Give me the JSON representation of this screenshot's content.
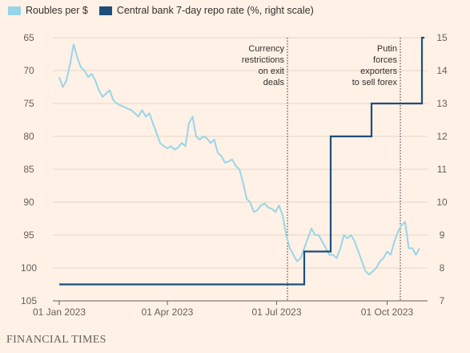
{
  "legend": {
    "items": [
      {
        "label": "Roubles per $",
        "color": "#99d5e8"
      },
      {
        "label": "Central bank 7-day repo rate (%, right scale)",
        "color": "#1f4e7a"
      }
    ]
  },
  "footer": {
    "source": "FINANCIAL TIMES"
  },
  "chart_data": {
    "type": "line",
    "x_ticks": [
      "01 Jan 2023",
      "01 Apr 2023",
      "01 Jul 2023",
      "01 Oct 2023"
    ],
    "x_range": [
      "2023-01-01",
      "2023-11-01"
    ],
    "left_axis": {
      "range": [
        65,
        105
      ],
      "inverted": true,
      "ticks": [
        65,
        70,
        75,
        80,
        85,
        90,
        95,
        100,
        105
      ]
    },
    "right_axis": {
      "range": [
        7,
        15
      ],
      "ticks": [
        7,
        8,
        9,
        10,
        11,
        12,
        13,
        14,
        15
      ]
    },
    "grid": "horizontal",
    "legend_position": "top-left",
    "annotations": [
      {
        "lines": [
          "Currency",
          "restrictions",
          "on exit",
          "deals"
        ],
        "x": "2023-07-10"
      },
      {
        "lines": [
          "Putin",
          "forces",
          "exporters",
          "to sell forex"
        ],
        "x": "2023-10-12"
      }
    ],
    "series": [
      {
        "name": "Roubles per $",
        "axis": "left",
        "color": "#99d5e8",
        "x": [
          "2023-01-01",
          "2023-01-04",
          "2023-01-07",
          "2023-01-10",
          "2023-01-13",
          "2023-01-16",
          "2023-01-19",
          "2023-01-22",
          "2023-01-25",
          "2023-01-28",
          "2023-01-31",
          "2023-02-03",
          "2023-02-06",
          "2023-02-09",
          "2023-02-12",
          "2023-02-15",
          "2023-02-18",
          "2023-02-21",
          "2023-02-24",
          "2023-02-27",
          "2023-03-02",
          "2023-03-05",
          "2023-03-08",
          "2023-03-11",
          "2023-03-14",
          "2023-03-17",
          "2023-03-20",
          "2023-03-23",
          "2023-03-26",
          "2023-03-29",
          "2023-04-01",
          "2023-04-04",
          "2023-04-07",
          "2023-04-10",
          "2023-04-13",
          "2023-04-16",
          "2023-04-19",
          "2023-04-22",
          "2023-04-25",
          "2023-04-28",
          "2023-05-01",
          "2023-05-04",
          "2023-05-07",
          "2023-05-10",
          "2023-05-13",
          "2023-05-16",
          "2023-05-19",
          "2023-05-22",
          "2023-05-25",
          "2023-05-28",
          "2023-05-31",
          "2023-06-03",
          "2023-06-06",
          "2023-06-09",
          "2023-06-12",
          "2023-06-15",
          "2023-06-18",
          "2023-06-21",
          "2023-06-24",
          "2023-06-27",
          "2023-06-30",
          "2023-07-03",
          "2023-07-06",
          "2023-07-09",
          "2023-07-12",
          "2023-07-15",
          "2023-07-18",
          "2023-07-21",
          "2023-07-24",
          "2023-07-27",
          "2023-07-30",
          "2023-08-02",
          "2023-08-05",
          "2023-08-08",
          "2023-08-11",
          "2023-08-14",
          "2023-08-17",
          "2023-08-20",
          "2023-08-23",
          "2023-08-26",
          "2023-08-29",
          "2023-09-01",
          "2023-09-04",
          "2023-09-07",
          "2023-09-10",
          "2023-09-13",
          "2023-09-16",
          "2023-09-19",
          "2023-09-22",
          "2023-09-25",
          "2023-09-28",
          "2023-10-01",
          "2023-10-04",
          "2023-10-07",
          "2023-10-10",
          "2023-10-13",
          "2023-10-16",
          "2023-10-19",
          "2023-10-22",
          "2023-10-25",
          "2023-10-28"
        ],
        "values": [
          71,
          72.5,
          71.5,
          69,
          66,
          68,
          69.5,
          70,
          71,
          70.5,
          71.5,
          73,
          74,
          73.5,
          73,
          74.5,
          75,
          75.3,
          75.5,
          75.8,
          76,
          76.5,
          77,
          76,
          77,
          76.5,
          78,
          79.5,
          81,
          81.5,
          81.8,
          81.5,
          82,
          81.7,
          81,
          81.5,
          78,
          77,
          80,
          80.5,
          80,
          80.3,
          81,
          80.5,
          82.5,
          83,
          84,
          83.8,
          83.5,
          84.5,
          85,
          87,
          89.5,
          90,
          91.5,
          91.2,
          90.5,
          90.2,
          90.8,
          91,
          91.5,
          90.5,
          92,
          95,
          97,
          98,
          99,
          98.5,
          97,
          95.5,
          94,
          95,
          95,
          96,
          97,
          98,
          98,
          98.5,
          97,
          95,
          95.5,
          95,
          96,
          97.5,
          99,
          100.5,
          101,
          100.5,
          100,
          99,
          98.5,
          97.5,
          98,
          96,
          94.5,
          93.5,
          93,
          97,
          97,
          98,
          97
        ]
      },
      {
        "name": "Central bank 7-day repo rate (%, right scale)",
        "axis": "right",
        "color": "#1f4e7a",
        "type": "step",
        "x": [
          "2023-01-01",
          "2023-07-24",
          "2023-08-15",
          "2023-09-18",
          "2023-10-30",
          "2023-11-01"
        ],
        "values": [
          7.5,
          8.5,
          12,
          13,
          15,
          15
        ]
      }
    ]
  }
}
